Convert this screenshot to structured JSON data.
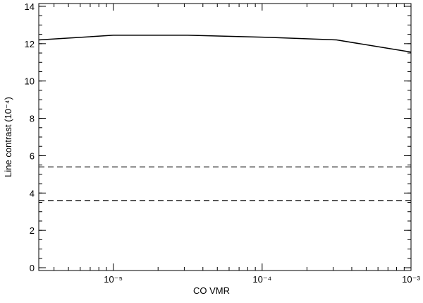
{
  "chart_data": {
    "type": "line",
    "x_label": "CO VMR",
    "y_label": "Line contrast (10⁻⁴)",
    "x_scale": "log",
    "xlim": [
      3.16e-06,
      0.001
    ],
    "xticks": [
      {
        "value": 1e-05,
        "label": "10⁻⁵"
      },
      {
        "value": 0.0001,
        "label": "10⁻⁴"
      },
      {
        "value": 0.001,
        "label": "10⁻³"
      }
    ],
    "ylim": [
      -0.15,
      14.15
    ],
    "yticks": [
      0,
      2,
      4,
      6,
      8,
      10,
      12,
      14
    ],
    "x": [
      3.16e-06,
      1e-05,
      3.16e-05,
      0.0001,
      0.000316,
      0.001
    ],
    "series": [
      {
        "color": "#000000",
        "values": [
          12.2,
          12.45,
          12.45,
          12.35,
          12.2,
          11.55
        ]
      }
    ],
    "hlines": [
      {
        "value": 5.4,
        "color": "#000000",
        "style": "dashed"
      },
      {
        "value": 3.6,
        "color": "#000000",
        "style": "dashed"
      }
    ]
  }
}
